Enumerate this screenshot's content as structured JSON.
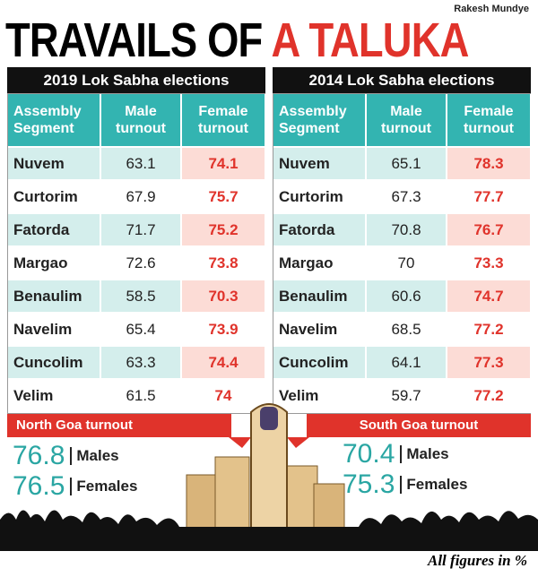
{
  "credit": "Rakesh Mundye",
  "title": {
    "part1": "TRAVAILS OF",
    "part2": "A TALUKA"
  },
  "tables": [
    {
      "caption": "2019 Lok Sabha elections",
      "columns": [
        "Assembly Segment",
        "Male turnout",
        "Female turnout"
      ],
      "rows": [
        [
          "Nuvem",
          "63.1",
          "74.1"
        ],
        [
          "Curtorim",
          "67.9",
          "75.7"
        ],
        [
          "Fatorda",
          "71.7",
          "75.2"
        ],
        [
          "Margao",
          "72.6",
          "73.8"
        ],
        [
          "Benaulim",
          "58.5",
          "70.3"
        ],
        [
          "Navelim",
          "65.4",
          "73.9"
        ],
        [
          "Cuncolim",
          "63.3",
          "74.4"
        ],
        [
          "Velim",
          "61.5",
          "74"
        ]
      ]
    },
    {
      "caption": "2014 Lok Sabha elections",
      "columns": [
        "Assembly Segment",
        "Male turnout",
        "Female turnout"
      ],
      "rows": [
        [
          "Nuvem",
          "65.1",
          "78.3"
        ],
        [
          "Curtorim",
          "67.3",
          "77.7"
        ],
        [
          "Fatorda",
          "70.8",
          "76.7"
        ],
        [
          "Margao",
          "70",
          "73.3"
        ],
        [
          "Benaulim",
          "60.6",
          "74.7"
        ],
        [
          "Navelim",
          "68.5",
          "77.2"
        ],
        [
          "Cuncolim",
          "64.1",
          "77.3"
        ],
        [
          "Velim",
          "59.7",
          "77.2"
        ]
      ]
    }
  ],
  "summary": [
    {
      "label": "North Goa turnout",
      "male": {
        "value": "76.8",
        "label": "Males"
      },
      "female": {
        "value": "76.5",
        "label": "Females"
      }
    },
    {
      "label": "South Goa turnout",
      "male": {
        "value": "70.4",
        "label": "Males"
      },
      "female": {
        "value": "75.3",
        "label": "Females"
      }
    }
  ],
  "footnote": "All figures in %"
}
